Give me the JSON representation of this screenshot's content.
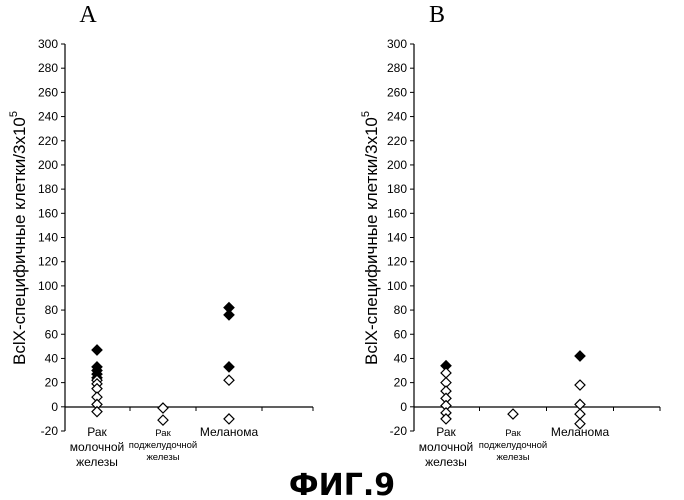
{
  "figure_caption": "ФИГ.9",
  "chart_data": [
    {
      "type": "scatter",
      "panel_label": "A",
      "ylabel": "BclX-специфичные клетки/3x10",
      "ylabel_superscript": "5",
      "ylim": [
        -20,
        300
      ],
      "yticks": [
        -20,
        0,
        20,
        40,
        60,
        80,
        100,
        120,
        140,
        160,
        180,
        200,
        220,
        240,
        260,
        280,
        300
      ],
      "grid": false,
      "categories": [
        {
          "lines": [
            "Рак",
            "молочной",
            "железы"
          ]
        },
        {
          "lines": [
            "Рак",
            "поджелудочной",
            "железы"
          ]
        },
        {
          "lines": [
            "Меланома"
          ]
        }
      ],
      "series": [
        {
          "marker": "filled-diamond",
          "points": [
            {
              "category": 0,
              "value": 47
            },
            {
              "category": 0,
              "value": 33
            },
            {
              "category": 0,
              "value": 30
            },
            {
              "category": 0,
              "value": 27
            },
            {
              "category": 0,
              "value": 24
            },
            {
              "category": 2,
              "value": 82
            },
            {
              "category": 2,
              "value": 76
            },
            {
              "category": 2,
              "value": 33
            }
          ]
        },
        {
          "marker": "open-diamond",
          "points": [
            {
              "category": 0,
              "value": 22
            },
            {
              "category": 0,
              "value": 19
            },
            {
              "category": 0,
              "value": 15
            },
            {
              "category": 0,
              "value": 8
            },
            {
              "category": 0,
              "value": 2
            },
            {
              "category": 0,
              "value": -4
            },
            {
              "category": 1,
              "value": -1
            },
            {
              "category": 1,
              "value": -11
            },
            {
              "category": 2,
              "value": 22
            },
            {
              "category": 2,
              "value": -10
            }
          ]
        }
      ]
    },
    {
      "type": "scatter",
      "panel_label": "B",
      "ylabel": "BclX-специфичные клетки/3x10",
      "ylabel_superscript": "5",
      "ylim": [
        -20,
        300
      ],
      "yticks": [
        -20,
        0,
        20,
        40,
        60,
        80,
        100,
        120,
        140,
        160,
        180,
        200,
        220,
        240,
        260,
        280,
        300
      ],
      "grid": false,
      "categories": [
        {
          "lines": [
            "Рак",
            "молочной",
            "железы"
          ]
        },
        {
          "lines": [
            "Рак",
            "поджелудочной",
            "железы"
          ]
        },
        {
          "lines": [
            "Меланома"
          ]
        }
      ],
      "series": [
        {
          "marker": "filled-diamond",
          "points": [
            {
              "category": 0,
              "value": 34
            },
            {
              "category": 2,
              "value": 42
            }
          ]
        },
        {
          "marker": "open-diamond",
          "points": [
            {
              "category": 0,
              "value": 28
            },
            {
              "category": 0,
              "value": 20
            },
            {
              "category": 0,
              "value": 13
            },
            {
              "category": 0,
              "value": 7
            },
            {
              "category": 0,
              "value": 1
            },
            {
              "category": 0,
              "value": -5
            },
            {
              "category": 0,
              "value": -10
            },
            {
              "category": 1,
              "value": -6
            },
            {
              "category": 2,
              "value": 18
            },
            {
              "category": 2,
              "value": 2
            },
            {
              "category": 2,
              "value": -6
            },
            {
              "category": 2,
              "value": -14
            }
          ]
        }
      ]
    }
  ]
}
